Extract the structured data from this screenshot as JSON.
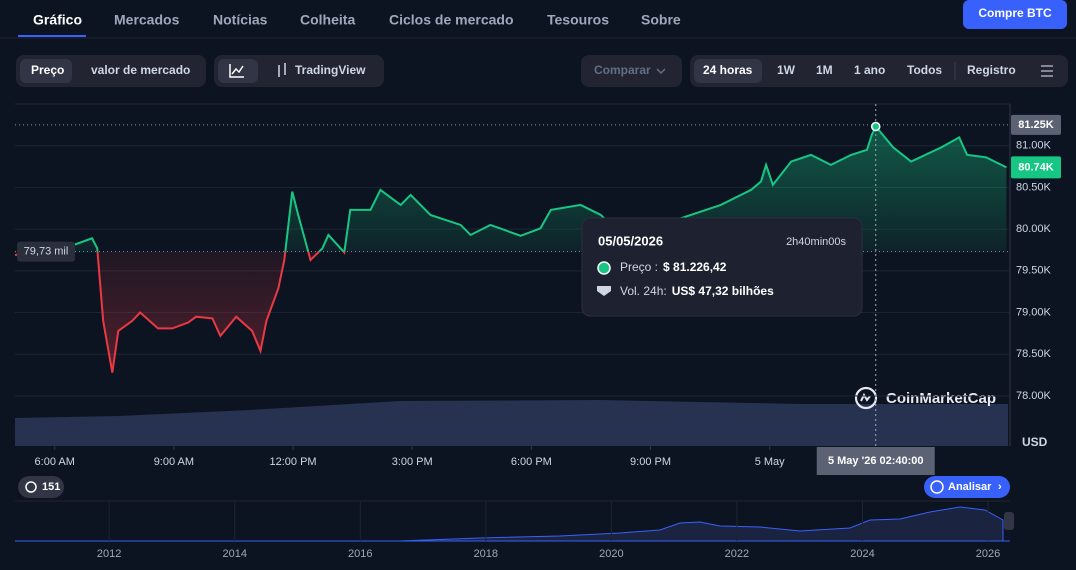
{
  "nav": {
    "tabs": [
      "Gráfico",
      "Mercados",
      "Notícias",
      "Colheita",
      "Ciclos de mercado",
      "Tesouros",
      "Sobre"
    ],
    "buy_button": "Compre BTC"
  },
  "toolbar": {
    "modes": [
      "Preço",
      "valor de mercado"
    ],
    "tradingview": "TradingView",
    "compare": "Comparar",
    "ranges": [
      "24 horas",
      "1W",
      "1M",
      "1 ano",
      "Todos"
    ],
    "log": "Registro"
  },
  "chart_data": {
    "type": "line",
    "x": [
      5.0,
      6.13,
      6.94,
      7.07,
      7.22,
      7.45,
      7.6,
      7.95,
      8.15,
      8.6,
      8.96,
      9.36,
      9.56,
      9.97,
      10.17,
      10.57,
      10.97,
      11.18,
      11.33,
      11.63,
      11.78,
      11.98,
      12.13,
      12.44,
      12.74,
      12.89,
      13.29,
      13.44,
      13.95,
      14.2,
      14.71,
      14.96,
      15.46,
      16.22,
      16.47,
      16.97,
      17.73,
      18.23,
      18.49,
      19.24,
      19.75,
      20.0,
      20.76,
      21.76,
      22.77,
      23.53,
      23.78,
      23.91,
      24.08,
      24.54,
      25.04,
      25.54,
      26.05,
      26.45,
      26.57,
      26.67,
      27.11,
      27.56,
      28.32,
      28.77,
      28.97,
      29.45,
      29.96
    ],
    "series": [
      {
        "color_up": "#16c784",
        "color_down": "#ea3943",
        "values": [
          79690,
          79750,
          79890,
          79770,
          78900,
          78280,
          78780,
          78900,
          79000,
          78810,
          78810,
          78880,
          78950,
          78930,
          78720,
          78950,
          78780,
          78540,
          78900,
          79290,
          79630,
          80450,
          80170,
          79630,
          79770,
          79930,
          79720,
          80230,
          80230,
          80470,
          80290,
          80410,
          80170,
          80050,
          79930,
          80050,
          79920,
          80010,
          80230,
          80290,
          80170,
          80050,
          79990,
          80130,
          80290,
          80470,
          80570,
          80770,
          80530,
          80810,
          80890,
          80770,
          80890,
          80950,
          81130,
          81230,
          80980,
          80810,
          80980,
          81100,
          80890,
          80860,
          80740
        ]
      }
    ],
    "xlim": [
      5,
      30.05
    ],
    "xticks": [
      {
        "value": 6,
        "label": "6:00 AM"
      },
      {
        "value": 9,
        "label": "9:00 AM"
      },
      {
        "value": 12,
        "label": "12:00 PM"
      },
      {
        "value": 15,
        "label": "3:00 PM"
      },
      {
        "value": 18,
        "label": "6:00 PM"
      },
      {
        "value": 21,
        "label": "9:00 PM"
      },
      {
        "value": 24,
        "label": "5 May"
      }
    ],
    "ylim": [
      77400,
      81500
    ],
    "yticks": [
      {
        "value": 78000,
        "label": "78.00K"
      },
      {
        "value": 78500,
        "label": "78.50K"
      },
      {
        "value": 79000,
        "label": "79.00K"
      },
      {
        "value": 79500,
        "label": "79.50K"
      },
      {
        "value": 80000,
        "label": "80.00K"
      },
      {
        "value": 80500,
        "label": "80.50K"
      },
      {
        "value": 81000,
        "label": "81.00K"
      }
    ],
    "grid": true,
    "reference": {
      "value": 79730,
      "label": "79,73 mil"
    },
    "high_tag": {
      "value": 81250,
      "label": "81.25K"
    },
    "last_tag": {
      "value": 80740,
      "label": "80.74K"
    },
    "currency": "USD",
    "crosshair": {
      "x": 26.67,
      "label": "5 May '26 02:40:00"
    },
    "tooltip": {
      "date": "05/05/2026",
      "duration": "2h40min00s",
      "price_label": "Preço :",
      "price": "$ 81.226,42",
      "volume_label": "Vol. 24h:",
      "volume": "US$ 47,32 bilhões"
    },
    "watermark": "CoinMarketCap",
    "badge": "151",
    "analyze": "Analisar",
    "navigator": {
      "xlim": [
        2010.5,
        2026.35
      ],
      "xticks": [
        2012,
        2014,
        2016,
        2018,
        2020,
        2022,
        2024,
        2026
      ]
    }
  }
}
